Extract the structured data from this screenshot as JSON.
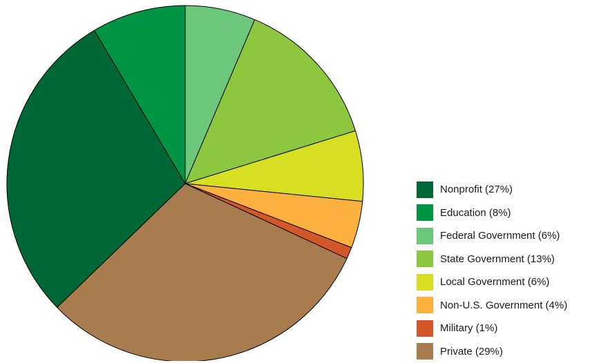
{
  "chart_data": {
    "type": "pie",
    "title": "",
    "slices": [
      {
        "label": "Nonprofit (27%)",
        "value": 27,
        "color": "#006837"
      },
      {
        "label": "Education (8%)",
        "value": 8,
        "color": "#009444"
      },
      {
        "label": "Federal Government (6%)",
        "value": 6,
        "color": "#6cc77a"
      },
      {
        "label": "State Government (13%)",
        "value": 13,
        "color": "#8dc63f"
      },
      {
        "label": "Local Government (6%)",
        "value": 6,
        "color": "#d7df23"
      },
      {
        "label": "Non-U.S. Government (4%)",
        "value": 4,
        "color": "#fbb040"
      },
      {
        "label": "Military (1%)",
        "value": 1,
        "color": "#d4572a"
      },
      {
        "label": "Private (29%)",
        "value": 29,
        "color": "#a97c50"
      }
    ],
    "draw_order": [
      "Federal Government (6%)",
      "State Government (13%)",
      "Local Government (6%)",
      "Non-U.S. Government (4%)",
      "Military (1%)",
      "Private (29%)",
      "Nonprofit (27%)",
      "Education (8%)"
    ],
    "legend_position": "right"
  }
}
